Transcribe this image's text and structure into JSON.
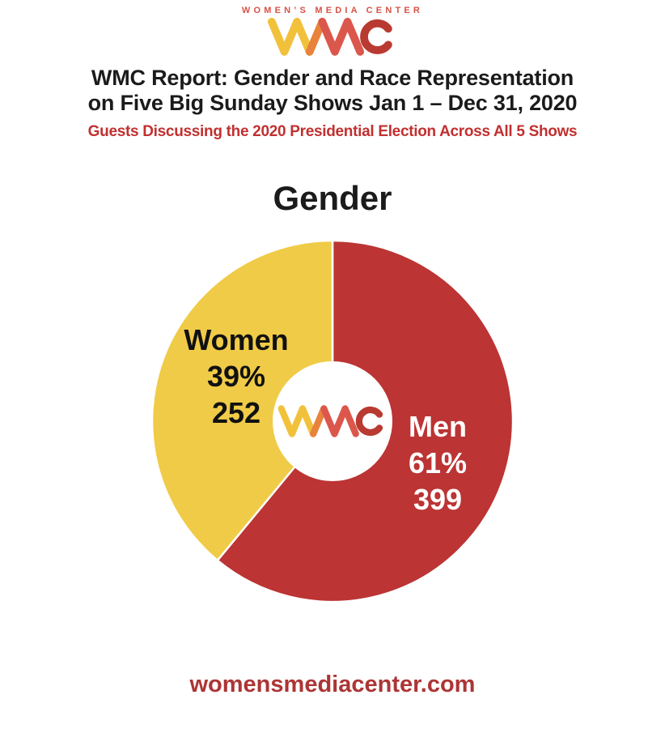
{
  "header": {
    "brand_text": "WOMEN’S MEDIA CENTER",
    "title_line1": "WMC Report: Gender and Race Representation",
    "title_line2": "on Five Big Sunday Shows Jan 1 – Dec 31, 2020",
    "subtitle": "Guests Discussing the 2020 Presidential Election Across All 5 Shows"
  },
  "chart_data": {
    "type": "pie",
    "title": "Gender",
    "categories": [
      "Men",
      "Women"
    ],
    "values": [
      61,
      39
    ],
    "counts": [
      399,
      252
    ],
    "donut": true,
    "start_angle_deg": 0,
    "direction": "clockwise",
    "legend_position": "labels-on-slices",
    "center_decoration": "WMC monogram in white donut hole",
    "slices": [
      {
        "label": "Men",
        "percent": 61,
        "percent_label": "61%",
        "count": 399,
        "count_label": "399",
        "color": "#BC3434",
        "label_color": "#FFFFFF"
      },
      {
        "label": "Women",
        "percent": 39,
        "percent_label": "39%",
        "count": 252,
        "count_label": "252",
        "color": "#F0CB47",
        "label_color": "#111111"
      }
    ]
  },
  "footer": {
    "website": "womensmediacenter.com"
  },
  "colors": {
    "background": "#FFFFFF",
    "men_red": "#BC3434",
    "women_yellow": "#F0CB47",
    "title_text": "#1B1B1B",
    "subtitle_red": "#C13030",
    "footer_red": "#AD3535",
    "brand_text_red": "#D75245",
    "logo_yellow": "#F2C13B",
    "logo_orange": "#E8823C",
    "logo_salmon": "#DB574C",
    "logo_dark_red": "#B93A31",
    "slice_separator": "#FFFFFF"
  }
}
